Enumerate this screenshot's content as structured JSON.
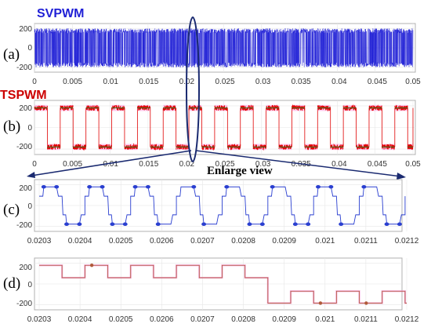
{
  "enlarge_label": "Enlarge view",
  "colors": {
    "svpwm": "#1f1fd6",
    "tspwm_red": "#e00000",
    "tspwm_green": "#3a7a2a",
    "tspwm_pink": "#ff66cc",
    "zoom_blue": "#2a3fd0",
    "zoom_pink": "#f28fd0",
    "zoom_brown": "#b05a3a",
    "annotation": "#1a2a70"
  },
  "chart_data": [
    {
      "id": "a",
      "panel_label": "(a)",
      "title": "SVPWM",
      "type": "line",
      "xlim": [
        0,
        0.05
      ],
      "ylim": [
        -250,
        250
      ],
      "x_ticks": [
        "0",
        "0.005",
        "0.01",
        "0.015",
        "0.02",
        "0.025",
        "0.03",
        "0.035",
        "0.04",
        "0.045",
        "0.05"
      ],
      "y_ticks": [
        "200",
        "0",
        "-200"
      ],
      "y_tick_values": [
        200,
        0,
        -200
      ],
      "description_values": {
        "switching_amplitude": 200
      }
    },
    {
      "id": "b",
      "panel_label": "(b)",
      "title": "TSPWM",
      "type": "line",
      "xlim": [
        0,
        0.05
      ],
      "ylim": [
        -250,
        250
      ],
      "x_ticks": [
        "0",
        "0.005",
        "0.01",
        "0.015",
        "0.02",
        "0.025",
        "0.03",
        "0.035",
        "0.04",
        "0.045",
        "0.05"
      ],
      "y_ticks": [
        "200",
        "0",
        "-200"
      ],
      "y_tick_values": [
        200,
        0,
        -200
      ],
      "description_values": {
        "level_high": 180,
        "level_low": -180,
        "half_period": 0.0017
      }
    },
    {
      "id": "c",
      "panel_label": "(c)",
      "title": "",
      "type": "line",
      "xlim": [
        0.0203,
        0.0212
      ],
      "ylim": [
        -250,
        250
      ],
      "x_ticks": [
        "0.0203",
        "0.0204",
        "0.0205",
        "0.0206",
        "0.0207",
        "0.0208",
        "0.0209",
        "0.021",
        "0.0211",
        "0.0212"
      ],
      "y_ticks": [
        "200",
        "0",
        "-200"
      ],
      "y_tick_values": [
        200,
        0,
        -200
      ],
      "description_values": {
        "plateau_high": 180,
        "plateau_low": -180,
        "mid_level": 90
      }
    },
    {
      "id": "d",
      "panel_label": "(d)",
      "title": "",
      "type": "line",
      "xlim": [
        0.0203,
        0.0212
      ],
      "ylim": [
        -250,
        250
      ],
      "x_ticks": [
        "0.0203",
        "0.0204",
        "0.0205",
        "0.0206",
        "0.0207",
        "0.0208",
        "0.0209",
        "0.021",
        "0.0211",
        "0.0212"
      ],
      "y_ticks": [
        "200",
        "0",
        "-200"
      ],
      "y_tick_values": [
        200,
        0,
        -200
      ],
      "description_values": {
        "high_level": 180,
        "high_mid": 60,
        "low_mid": -70,
        "low_level": -185,
        "transition_x": 0.02082
      }
    }
  ]
}
